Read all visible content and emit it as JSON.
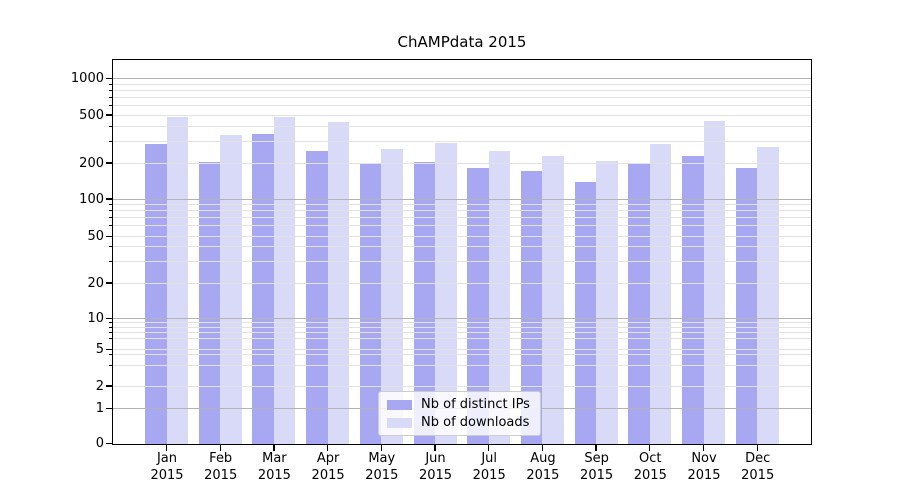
{
  "title": "ChAMPdata 2015",
  "chart_data": {
    "type": "bar",
    "title": "ChAMPdata 2015",
    "categories": [
      "Jan 2015",
      "Feb 2015",
      "Mar 2015",
      "Apr 2015",
      "May 2015",
      "Jun 2015",
      "Jul 2015",
      "Aug 2015",
      "Sep 2015",
      "Oct 2015",
      "Nov 2015",
      "Dec 2015"
    ],
    "series": [
      {
        "name": "Nb of distinct IPs",
        "color": "#a8a8f2",
        "values": [
          285,
          204,
          345,
          251,
          200,
          204,
          180,
          170,
          138,
          199,
          226,
          180
        ]
      },
      {
        "name": "Nb of downloads",
        "color": "#d9d9f8",
        "values": [
          477,
          338,
          477,
          438,
          259,
          290,
          249,
          226,
          205,
          287,
          443,
          269
        ]
      }
    ],
    "yscale": "symlog",
    "ylim": [
      0,
      1480
    ],
    "yticks": [
      0,
      1,
      2,
      5,
      10,
      20,
      50,
      100,
      200,
      500,
      1000
    ],
    "xlabel": "",
    "ylabel": "",
    "grid": "both",
    "legend_position": "lower center"
  },
  "colors": {
    "bar_distinct_ips": "#a8a8f2",
    "bar_downloads": "#d9d9f8",
    "grid_major": "#b3b3b3",
    "grid_minor": "#e2e2e2",
    "axis": "#000000",
    "legend_border": "#cccccc",
    "background": "#ffffff"
  }
}
